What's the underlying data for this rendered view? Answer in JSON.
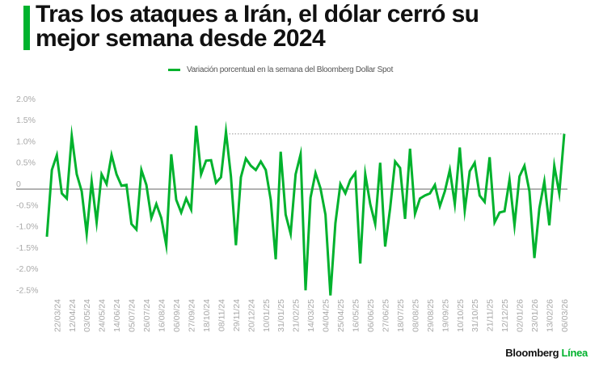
{
  "header": {
    "title": "Tras los ataques a Irán, el dólar cerró su mejor semana desde 2024",
    "accent_color": "#00b22d"
  },
  "legend": {
    "label": "Variación porcentual en la semana del Bloomberg Dollar Spot",
    "color": "#00b22d"
  },
  "branding": {
    "name_part1": "Bloomberg",
    "name_part2": "Línea"
  },
  "chart_data": {
    "type": "line",
    "title": "Tras los ataques a Irán, el dólar cerró su mejor semana desde 2024",
    "xlabel": "",
    "ylabel": "",
    "ylim": [
      -2.5,
      2.0
    ],
    "yticks": [
      2.0,
      1.5,
      1.0,
      0.5,
      0,
      -0.5,
      -1.0,
      -1.5,
      -2.0,
      -2.5
    ],
    "ytick_labels": [
      "2.0%",
      "1.5%",
      "1.0%",
      "0.5%",
      "0",
      "-0.5%",
      "-1.0%",
      "-1.5%",
      "-2.0%",
      "-2.5%"
    ],
    "xtick_labels": [
      "22/03/24",
      "12/04/24",
      "03/05/24",
      "24/05/24",
      "14/06/24",
      "05/07/24",
      "26/07/24",
      "16/08/24",
      "06/09/24",
      "27/09/24",
      "18/10/24",
      "08/11/24",
      "29/11/24",
      "20/12/24",
      "10/01/25",
      "31/01/25",
      "21/02/25",
      "14/03/25",
      "04/04/25",
      "25/04/25",
      "16/05/25",
      "06/06/25",
      "27/06/25",
      "18/07/25",
      "08/08/25",
      "29/08/25",
      "19/09/25",
      "10/10/25",
      "31/10/25",
      "21/11/25",
      "12/12/25",
      "02/01/26",
      "23/01/26",
      "13/02/26",
      "06/03/26"
    ],
    "xtick_start_index": 2,
    "xtick_step": 3,
    "grid": false,
    "legend_position": "top-center",
    "reference_line": {
      "value": 1.3,
      "style": "dotted",
      "from_label": "15/11/24",
      "to_label": "06/03/26"
    },
    "series": [
      {
        "name": "Variación porcentual en la semana del Bloomberg Dollar Spot",
        "color": "#00b22d",
        "start_date": "08/03/24",
        "frequency": "weekly",
        "values": [
          -1.12,
          0.45,
          0.8,
          -0.1,
          -0.22,
          1.25,
          0.35,
          -0.05,
          -1.05,
          0.18,
          -0.78,
          0.35,
          0.12,
          0.8,
          0.35,
          0.08,
          0.1,
          -0.82,
          -0.95,
          0.45,
          0.1,
          -0.68,
          -0.35,
          -0.68,
          -1.32,
          0.82,
          -0.25,
          -0.55,
          -0.22,
          -0.48,
          1.49,
          0.35,
          0.67,
          0.68,
          0.15,
          0.28,
          1.35,
          0.3,
          -1.32,
          0.28,
          0.72,
          0.55,
          0.45,
          0.65,
          0.45,
          -0.25,
          -1.65,
          0.88,
          -0.6,
          -1.05,
          0.35,
          0.82,
          -2.38,
          -0.2,
          0.38,
          0.02,
          -0.6,
          -2.5,
          -0.8,
          0.12,
          -0.1,
          0.22,
          0.38,
          -1.75,
          0.35,
          -0.35,
          -0.82,
          0.62,
          -1.35,
          -0.45,
          0.65,
          0.5,
          -0.7,
          0.95,
          -0.58,
          -0.22,
          -0.15,
          -0.1,
          0.1,
          -0.4,
          -0.05,
          0.45,
          -0.35,
          0.98,
          -0.5,
          0.42,
          0.62,
          -0.15,
          -0.3,
          0.75,
          -0.78,
          -0.55,
          -0.52,
          0.22,
          -0.85,
          0.3,
          0.55,
          -0.05,
          -1.62,
          -0.45,
          0.18,
          -0.85,
          0.55,
          -0.1,
          1.3
        ]
      }
    ]
  }
}
